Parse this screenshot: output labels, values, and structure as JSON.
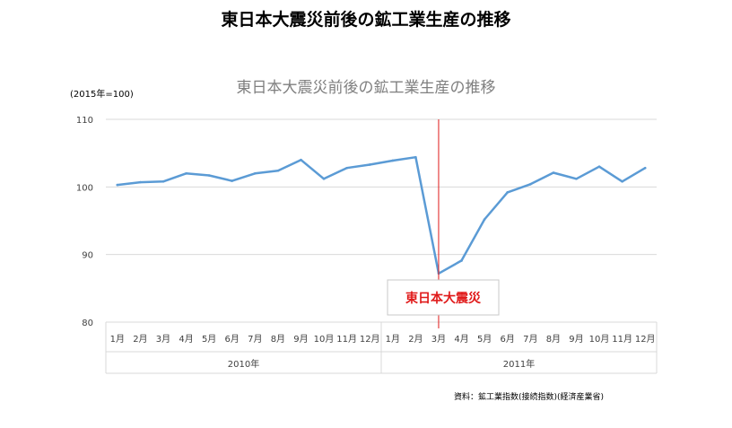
{
  "page": {
    "title": "東日本大震災前後の鉱工業生産の推移",
    "source": "資料：鉱工業指数(接続指数)(経済産業省)"
  },
  "chart_data": {
    "type": "line",
    "title": "東日本大震災前後の鉱工業生産の推移",
    "unit_label": "(2015年=100)",
    "ylim": [
      80,
      110
    ],
    "yticks": [
      80,
      90,
      100,
      110
    ],
    "grid": true,
    "month_labels": [
      "1月",
      "2月",
      "3月",
      "4月",
      "5月",
      "6月",
      "7月",
      "8月",
      "9月",
      "10月",
      "11月",
      "12月",
      "1月",
      "2月",
      "3月",
      "4月",
      "5月",
      "6月",
      "7月",
      "8月",
      "9月",
      "10月",
      "11月",
      "12月"
    ],
    "years": [
      {
        "label": "2010年",
        "months": 12
      },
      {
        "label": "2011年",
        "months": 12
      }
    ],
    "series": [
      {
        "color": "#5b9bd5",
        "values": [
          100.3,
          100.7,
          100.8,
          102.0,
          101.7,
          100.9,
          102.0,
          102.4,
          104.0,
          101.2,
          102.8,
          103.3,
          103.9,
          104.4,
          87.2,
          89.1,
          95.2,
          99.2,
          100.4,
          102.1,
          101.2,
          103.0,
          100.8,
          102.8
        ]
      }
    ],
    "annotation": {
      "text": "東日本大震災",
      "at_index": 14,
      "color": "#e01a1a"
    }
  }
}
